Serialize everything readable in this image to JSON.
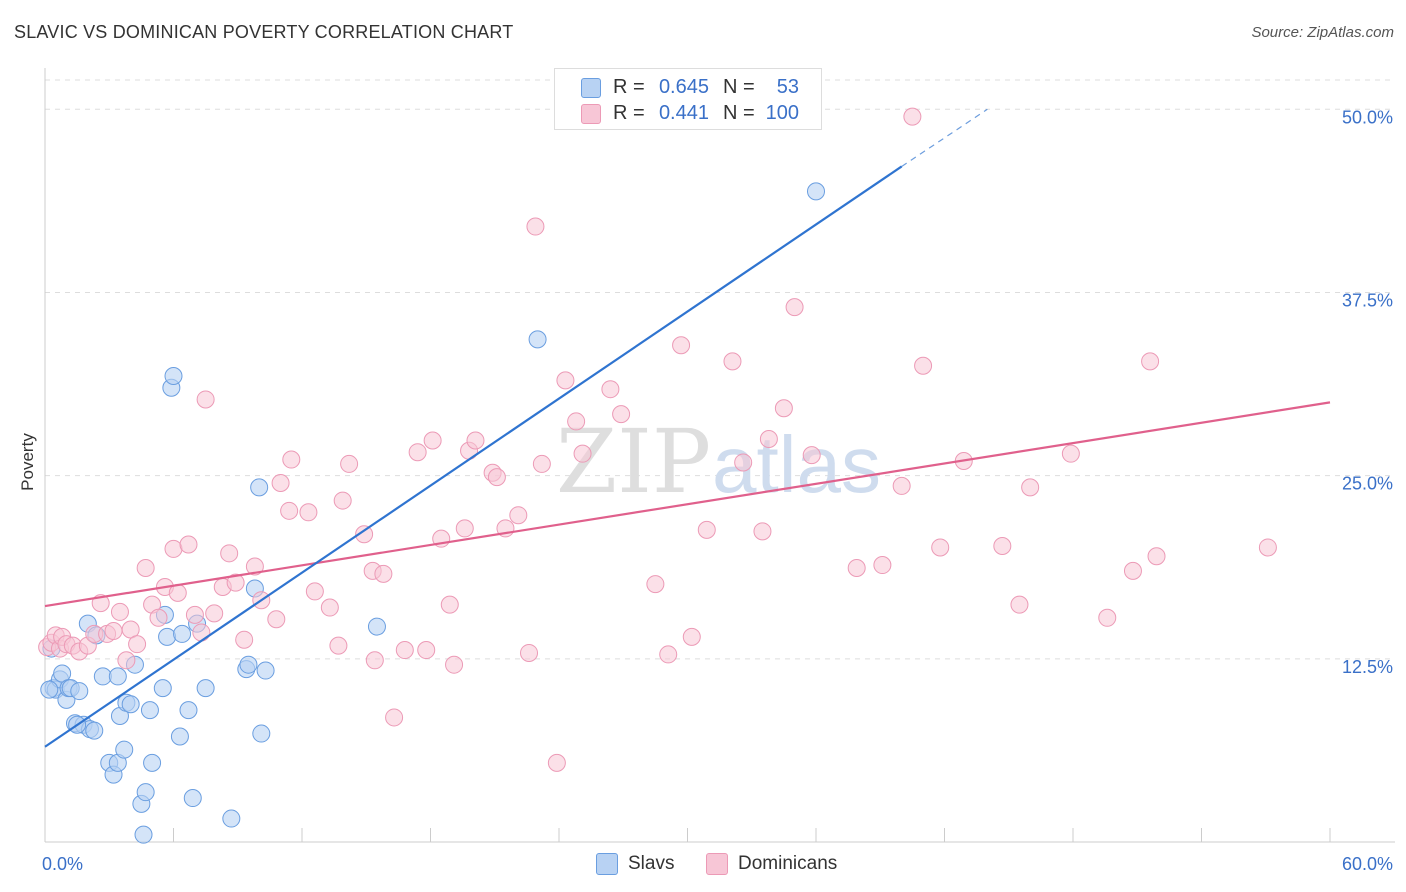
{
  "header": {
    "title": "SLAVIC VS DOMINICAN POVERTY CORRELATION CHART",
    "source": "Source: ZipAtlas.com"
  },
  "watermark": {
    "text_zip": "ZIP",
    "text_atlas": "atlas"
  },
  "legend_top": {
    "rows": [
      {
        "r_label": "R =",
        "r_value": "0.645",
        "n_label": "N =",
        "n_value": "53"
      },
      {
        "r_label": "R =",
        "r_value": "0.441",
        "n_label": "N =",
        "n_value": "100"
      }
    ]
  },
  "legend_bottom": {
    "items": [
      {
        "label": "Slavs"
      },
      {
        "label": "Dominicans"
      }
    ]
  },
  "colors": {
    "slavs_fill": "#b8d2f3",
    "slavs_stroke": "#6a9ee0",
    "slavs_line": "#2f74d0",
    "dom_fill": "#f7c6d6",
    "dom_stroke": "#ec9ab6",
    "dom_line": "#e0608c",
    "axis_label": "#3a70c8",
    "grid": "#dddddd"
  },
  "chart_data": {
    "type": "scatter",
    "title": "SLAVIC VS DOMINICAN POVERTY CORRELATION CHART",
    "xlabel": "",
    "ylabel": "Poverty",
    "xlim": [
      0,
      60
    ],
    "ylim": [
      0,
      52
    ],
    "x_tick_labels": [
      "0.0%",
      "60.0%"
    ],
    "y_ticks": [
      12.5,
      25.0,
      37.5,
      50.0
    ],
    "y_tick_labels": [
      "12.5%",
      "25.0%",
      "37.5%",
      "50.0%"
    ],
    "grid": true,
    "series": [
      {
        "name": "Slavs",
        "r": 0.645,
        "n": 53,
        "trend": {
          "x0": 0,
          "y0": 6.5,
          "x1": 40,
          "y1": 46.1,
          "dash_to_x": 44,
          "dash_to_y": 50.0
        },
        "points": [
          [
            0.3,
            13.2
          ],
          [
            0.4,
            10.5
          ],
          [
            0.5,
            10.4
          ],
          [
            0.7,
            11.1
          ],
          [
            0.8,
            11.5
          ],
          [
            1.0,
            9.7
          ],
          [
            1.1,
            10.5
          ],
          [
            1.2,
            10.5
          ],
          [
            1.4,
            8.1
          ],
          [
            1.6,
            10.3
          ],
          [
            1.8,
            8.0
          ],
          [
            2.0,
            14.9
          ],
          [
            2.1,
            7.7
          ],
          [
            2.4,
            14.1
          ],
          [
            2.7,
            11.3
          ],
          [
            3.0,
            5.4
          ],
          [
            3.2,
            4.6
          ],
          [
            3.4,
            5.4
          ],
          [
            3.4,
            11.3
          ],
          [
            3.5,
            8.6
          ],
          [
            3.7,
            6.3
          ],
          [
            3.8,
            9.5
          ],
          [
            4.0,
            9.4
          ],
          [
            4.2,
            12.1
          ],
          [
            4.5,
            2.6
          ],
          [
            4.6,
            0.5
          ],
          [
            4.7,
            3.4
          ],
          [
            4.9,
            9.0
          ],
          [
            5.0,
            5.4
          ],
          [
            5.5,
            10.5
          ],
          [
            5.6,
            15.5
          ],
          [
            5.7,
            14.0
          ],
          [
            5.9,
            31.0
          ],
          [
            6.0,
            31.8
          ],
          [
            6.3,
            7.2
          ],
          [
            6.4,
            14.2
          ],
          [
            6.7,
            9.0
          ],
          [
            6.9,
            3.0
          ],
          [
            7.1,
            14.9
          ],
          [
            7.5,
            10.5
          ],
          [
            8.7,
            1.6
          ],
          [
            9.4,
            11.8
          ],
          [
            9.5,
            12.1
          ],
          [
            9.8,
            17.3
          ],
          [
            10.0,
            24.2
          ],
          [
            10.1,
            7.4
          ],
          [
            10.3,
            11.7
          ],
          [
            15.5,
            14.7
          ],
          [
            23.0,
            34.3
          ],
          [
            36.0,
            44.4
          ],
          [
            0.2,
            10.4
          ],
          [
            1.5,
            8.0
          ],
          [
            2.3,
            7.6
          ]
        ]
      },
      {
        "name": "Dominicans",
        "r": 0.441,
        "n": 100,
        "trend": {
          "x0": 0,
          "y0": 16.1,
          "x1": 60,
          "y1": 30.0
        },
        "points": [
          [
            0.1,
            13.3
          ],
          [
            0.3,
            13.6
          ],
          [
            0.5,
            14.1
          ],
          [
            0.7,
            13.2
          ],
          [
            0.8,
            14.0
          ],
          [
            1.0,
            13.5
          ],
          [
            1.3,
            13.4
          ],
          [
            1.6,
            13.0
          ],
          [
            2.0,
            13.4
          ],
          [
            2.3,
            14.2
          ],
          [
            2.6,
            16.3
          ],
          [
            2.9,
            14.2
          ],
          [
            3.2,
            14.4
          ],
          [
            3.5,
            15.7
          ],
          [
            3.8,
            12.4
          ],
          [
            4.0,
            14.5
          ],
          [
            4.3,
            13.5
          ],
          [
            4.7,
            18.7
          ],
          [
            5.0,
            16.2
          ],
          [
            5.3,
            15.3
          ],
          [
            5.6,
            17.4
          ],
          [
            6.0,
            20.0
          ],
          [
            6.2,
            17.0
          ],
          [
            6.7,
            20.3
          ],
          [
            7.0,
            15.5
          ],
          [
            7.3,
            14.3
          ],
          [
            7.5,
            30.2
          ],
          [
            7.9,
            15.6
          ],
          [
            8.3,
            17.4
          ],
          [
            8.6,
            19.7
          ],
          [
            8.9,
            17.7
          ],
          [
            9.3,
            13.8
          ],
          [
            9.8,
            18.8
          ],
          [
            10.1,
            16.5
          ],
          [
            10.8,
            15.2
          ],
          [
            11.0,
            24.5
          ],
          [
            11.4,
            22.6
          ],
          [
            11.5,
            26.1
          ],
          [
            12.3,
            22.5
          ],
          [
            12.6,
            17.1
          ],
          [
            13.3,
            16.0
          ],
          [
            13.7,
            13.4
          ],
          [
            13.9,
            23.3
          ],
          [
            14.2,
            25.8
          ],
          [
            14.9,
            21.0
          ],
          [
            15.3,
            18.5
          ],
          [
            15.4,
            12.4
          ],
          [
            15.8,
            18.3
          ],
          [
            16.3,
            8.5
          ],
          [
            16.8,
            13.1
          ],
          [
            17.4,
            26.6
          ],
          [
            17.8,
            13.1
          ],
          [
            18.1,
            27.4
          ],
          [
            18.5,
            20.7
          ],
          [
            18.9,
            16.2
          ],
          [
            19.1,
            12.1
          ],
          [
            19.6,
            21.4
          ],
          [
            19.8,
            26.7
          ],
          [
            20.1,
            27.4
          ],
          [
            20.9,
            25.2
          ],
          [
            21.1,
            24.9
          ],
          [
            21.5,
            21.4
          ],
          [
            22.1,
            22.3
          ],
          [
            22.6,
            12.9
          ],
          [
            22.9,
            42.0
          ],
          [
            23.2,
            25.8
          ],
          [
            23.9,
            5.4
          ],
          [
            24.3,
            31.5
          ],
          [
            24.8,
            28.7
          ],
          [
            25.1,
            26.5
          ],
          [
            26.4,
            30.9
          ],
          [
            26.9,
            29.2
          ],
          [
            28.5,
            17.6
          ],
          [
            29.1,
            12.8
          ],
          [
            29.7,
            33.9
          ],
          [
            30.2,
            14.0
          ],
          [
            30.9,
            21.3
          ],
          [
            32.1,
            32.8
          ],
          [
            32.6,
            25.9
          ],
          [
            33.5,
            21.2
          ],
          [
            33.8,
            27.5
          ],
          [
            34.5,
            29.6
          ],
          [
            35.0,
            36.5
          ],
          [
            35.8,
            26.4
          ],
          [
            37.9,
            18.7
          ],
          [
            39.1,
            18.9
          ],
          [
            40.0,
            24.3
          ],
          [
            41.0,
            32.5
          ],
          [
            41.8,
            20.1
          ],
          [
            42.9,
            26.0
          ],
          [
            44.7,
            20.2
          ],
          [
            45.5,
            16.2
          ],
          [
            46.0,
            24.2
          ],
          [
            47.9,
            26.5
          ],
          [
            49.6,
            15.3
          ],
          [
            50.8,
            18.5
          ],
          [
            51.6,
            32.8
          ],
          [
            51.9,
            19.5
          ],
          [
            57.1,
            20.1
          ],
          [
            40.5,
            49.5
          ]
        ]
      }
    ]
  }
}
